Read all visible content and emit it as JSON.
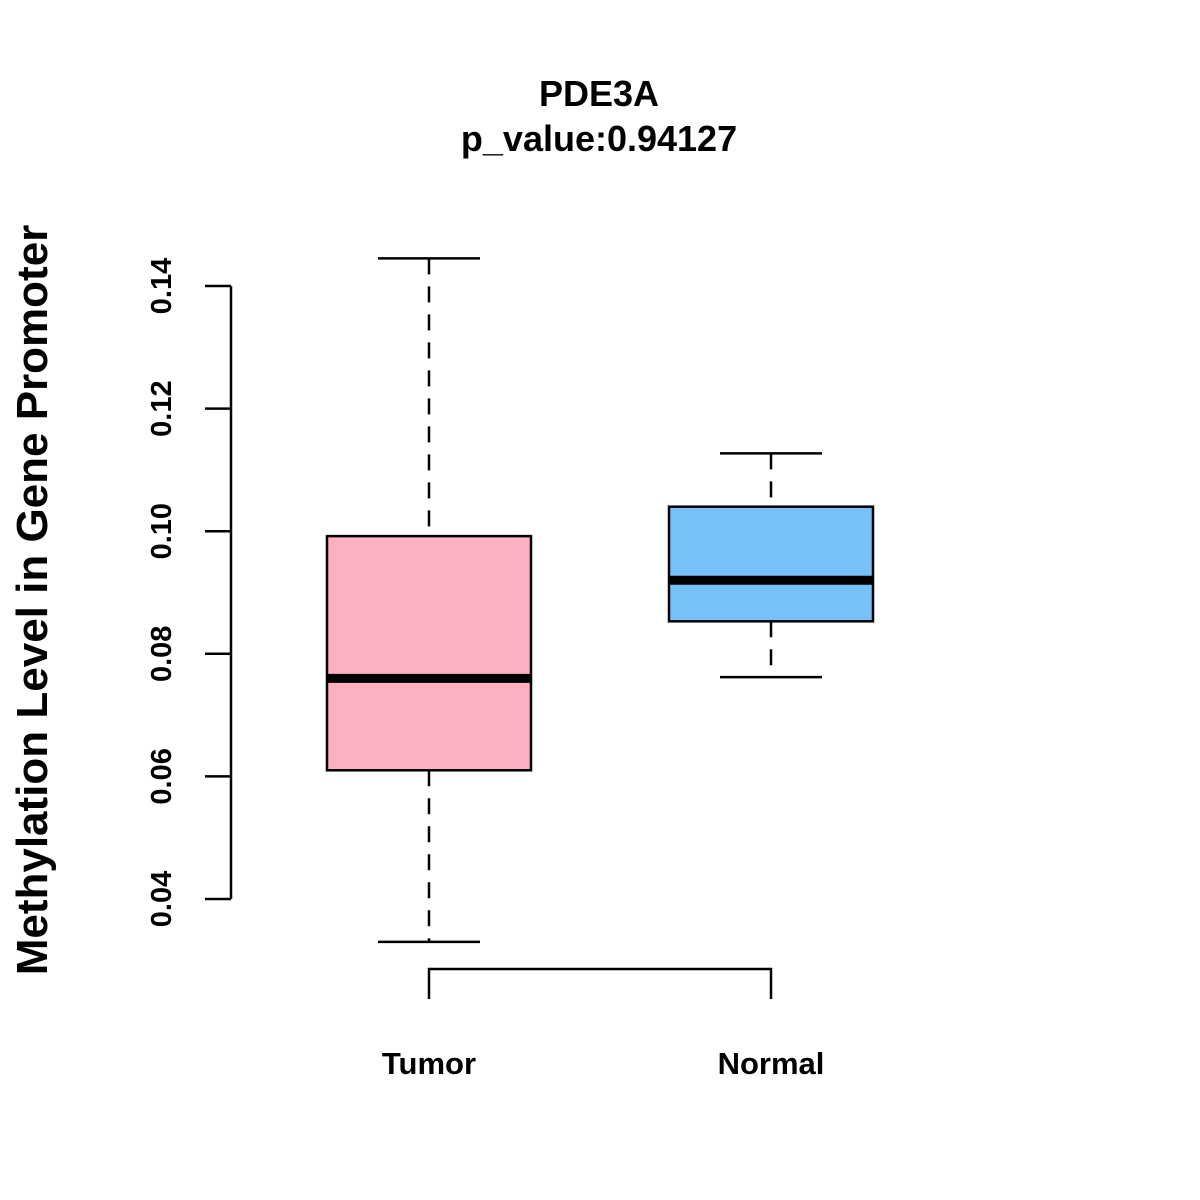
{
  "chart_data": {
    "type": "boxplot",
    "title": "PDE3A",
    "subtitle": "p_value:0.94127",
    "xlabel": "",
    "ylabel": "Methylation Level in Gene Promoter",
    "ylim": [
      0.04,
      0.14
    ],
    "yticks": [
      0.04,
      0.06,
      0.08,
      0.1,
      0.12,
      0.14
    ],
    "ytick_labels": [
      "0.04",
      "0.06",
      "0.08",
      "0.10",
      "0.12",
      "0.14"
    ],
    "grid": false,
    "categories": [
      "Tumor",
      "Normal"
    ],
    "boxes": [
      {
        "name": "Tumor",
        "whisker_low": 0.033,
        "q1": 0.061,
        "median": 0.076,
        "q3": 0.0992,
        "whisker_high": 0.1445,
        "color": "#FDB0C0"
      },
      {
        "name": "Normal",
        "whisker_low": 0.0762,
        "q1": 0.0853,
        "median": 0.092,
        "q3": 0.104,
        "whisker_high": 0.1127,
        "color": "#76C1F9"
      }
    ]
  }
}
